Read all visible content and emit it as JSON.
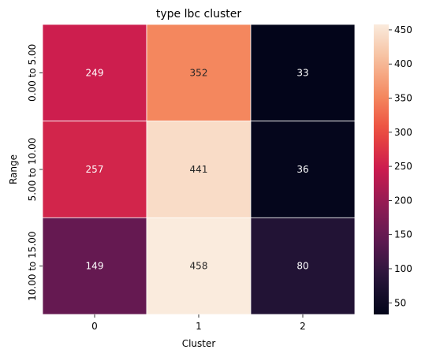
{
  "chart_data": {
    "type": "heatmap",
    "title": "type lbc cluster",
    "xlabel": "Cluster",
    "ylabel": "Range",
    "x_categories": [
      "0",
      "1",
      "2"
    ],
    "y_categories": [
      "0.00 to 5.00",
      "5.00 to 10.00",
      "10.00 to 15.00"
    ],
    "values": [
      [
        249,
        352,
        33
      ],
      [
        257,
        441,
        36
      ],
      [
        149,
        458,
        80
      ]
    ],
    "colorbar": {
      "min": 33,
      "max": 458,
      "ticks": [
        "50",
        "100",
        "150",
        "200",
        "250",
        "300",
        "350",
        "400",
        "450"
      ]
    },
    "colormap": "rocket"
  }
}
